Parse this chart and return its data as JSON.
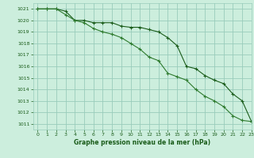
{
  "title": "Graphe pression niveau de la mer (hPa)",
  "bg_color": "#cceedd",
  "grid_color": "#99ccbb",
  "line_color1": "#1a5c1a",
  "line_color2": "#2d7a2d",
  "xlim": [
    -0.5,
    23
  ],
  "ylim": [
    1010.5,
    1021.5
  ],
  "yticks": [
    1011,
    1012,
    1013,
    1014,
    1015,
    1016,
    1017,
    1018,
    1019,
    1020,
    1021
  ],
  "xticks": [
    0,
    1,
    2,
    3,
    4,
    5,
    6,
    7,
    8,
    9,
    10,
    11,
    12,
    13,
    14,
    15,
    16,
    17,
    18,
    19,
    20,
    21,
    22,
    23
  ],
  "series1_x": [
    0,
    1,
    2,
    3,
    4,
    5,
    6,
    7,
    8,
    9,
    10,
    11,
    12,
    13,
    14,
    15,
    16,
    17,
    18,
    19,
    20,
    21,
    22,
    23
  ],
  "series1_y": [
    1021.0,
    1021.0,
    1021.0,
    1020.8,
    1020.0,
    1020.0,
    1019.8,
    1019.8,
    1019.8,
    1019.5,
    1019.4,
    1019.4,
    1019.2,
    1019.0,
    1018.5,
    1017.8,
    1016.0,
    1015.8,
    1015.2,
    1014.8,
    1014.5,
    1013.6,
    1013.0,
    1011.2
  ],
  "series2_x": [
    0,
    1,
    2,
    3,
    4,
    5,
    6,
    7,
    8,
    9,
    10,
    11,
    12,
    13,
    14,
    15,
    16,
    17,
    18,
    19,
    20,
    21,
    22,
    23
  ],
  "series2_y": [
    1021.0,
    1021.0,
    1021.0,
    1020.5,
    1020.0,
    1019.8,
    1019.3,
    1019.0,
    1018.8,
    1018.5,
    1018.0,
    1017.5,
    1016.8,
    1016.5,
    1015.4,
    1015.1,
    1014.8,
    1014.0,
    1013.4,
    1013.0,
    1012.5,
    1011.7,
    1011.3,
    1011.2
  ]
}
